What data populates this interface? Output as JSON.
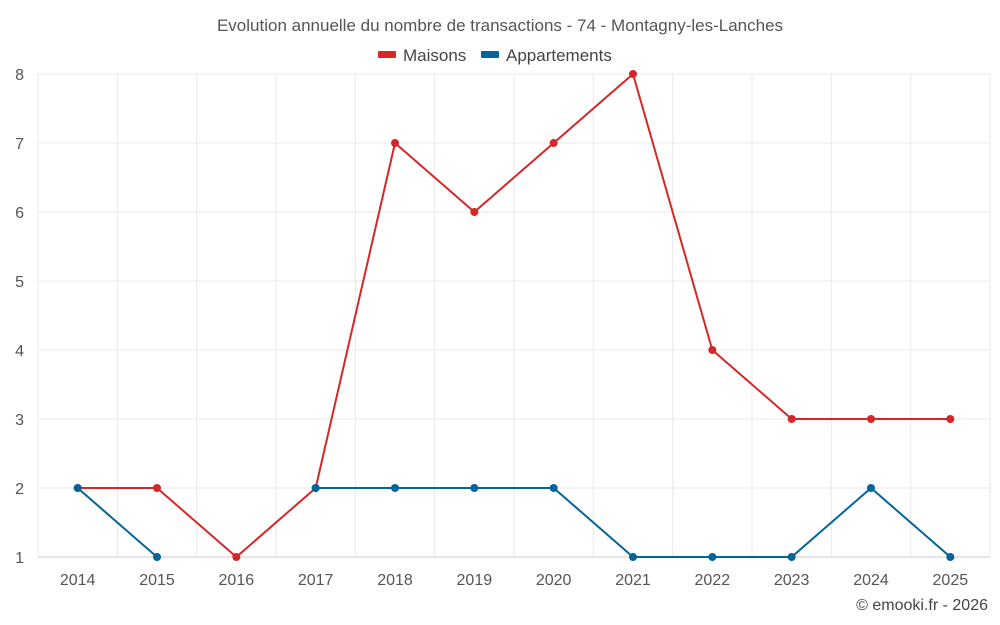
{
  "chart_data": {
    "type": "line",
    "title": "Evolution annuelle du nombre de transactions - 74 - Montagny-les-Lanches",
    "categories": [
      "2014",
      "2015",
      "2016",
      "2017",
      "2018",
      "2019",
      "2020",
      "2021",
      "2022",
      "2023",
      "2024",
      "2025"
    ],
    "series": [
      {
        "name": "Maisons",
        "color": "#d62728",
        "values": [
          2,
          2,
          1,
          2,
          7,
          6,
          7,
          8,
          4,
          3,
          3,
          3
        ]
      },
      {
        "name": "Appartements",
        "color": "#03649c",
        "values": [
          2,
          1,
          null,
          2,
          2,
          2,
          2,
          1,
          1,
          1,
          2,
          1
        ]
      }
    ],
    "ylim": [
      1,
      8
    ],
    "yticks": [
      "1",
      "2",
      "3",
      "4",
      "5",
      "6",
      "7",
      "8"
    ],
    "xlabel": "",
    "ylabel": "",
    "grid": true,
    "legend": "top-center"
  },
  "credit": "© emooki.fr - 2026"
}
